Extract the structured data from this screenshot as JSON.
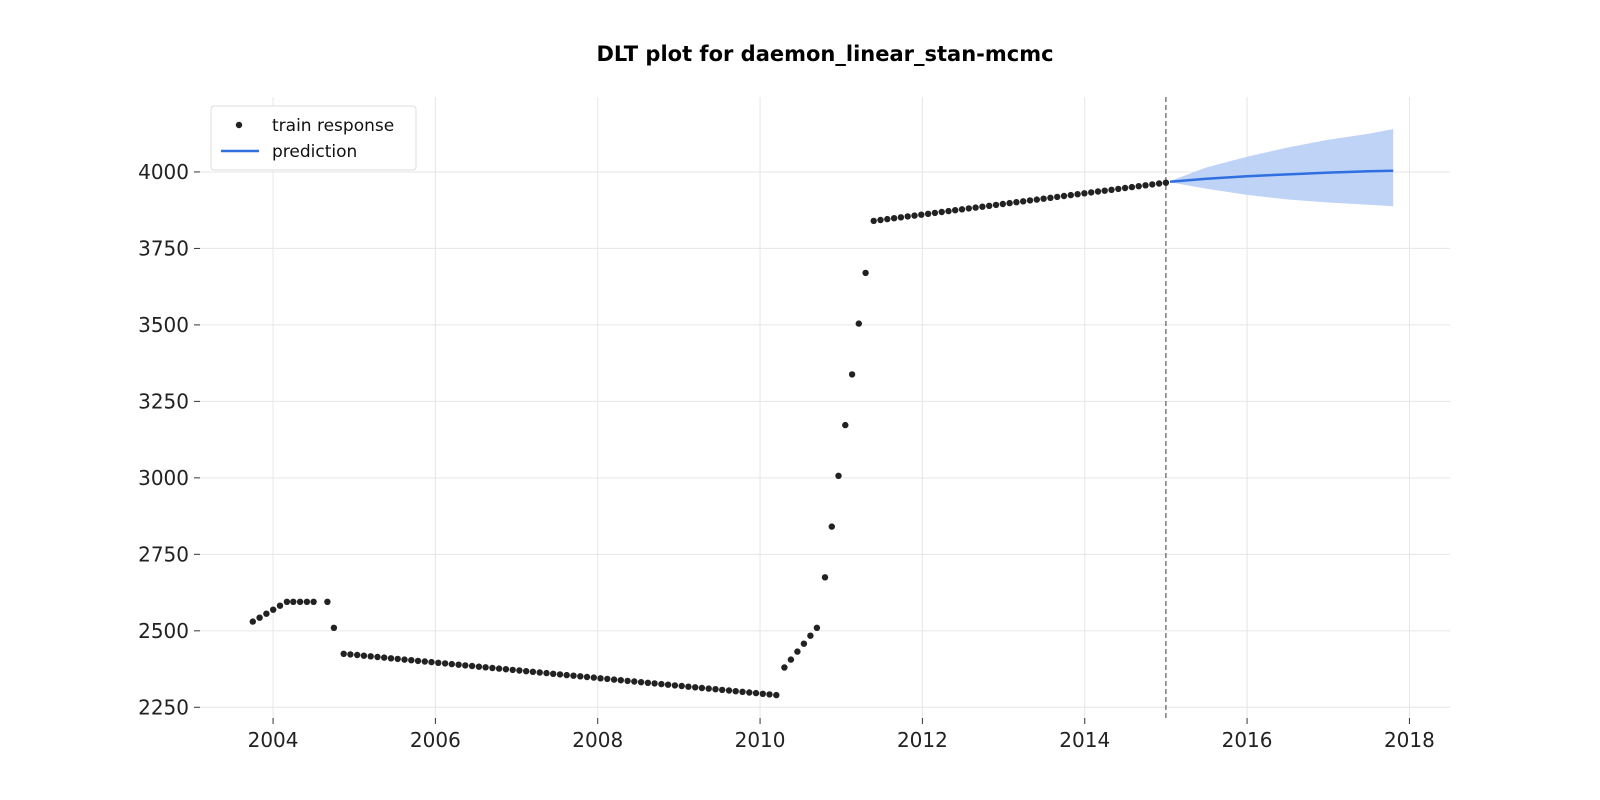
{
  "chart_data": {
    "type": "scatter",
    "title": "DLT plot for daemon_linear_stan-mcmc",
    "xlabel": "",
    "ylabel": "",
    "xlim": [
      2003.1,
      2018.5
    ],
    "ylim": [
      2215,
      4245
    ],
    "x_ticks": [
      2004,
      2006,
      2008,
      2010,
      2012,
      2014,
      2016,
      2018
    ],
    "x_tick_labels": [
      "2004",
      "2006",
      "2008",
      "2010",
      "2012",
      "2014",
      "2016",
      "2018"
    ],
    "y_ticks": [
      2250,
      2500,
      2750,
      3000,
      3250,
      3500,
      3750,
      4000
    ],
    "y_tick_labels": [
      "2250",
      "2500",
      "2750",
      "3000",
      "3250",
      "3500",
      "3750",
      "4000"
    ],
    "grid": true,
    "legend_position": "top-left",
    "vertical_line_x": 2015.0,
    "colors": {
      "points": "#222222",
      "prediction": "#2f6fe0",
      "band": "#bcd1f7",
      "vline": "#666666",
      "grid": "#e6e6e6"
    },
    "series": [
      {
        "name": "train response",
        "type": "scatter",
        "segments": [
          {
            "from": [
              2003.75,
              2530
            ],
            "to": [
              2004.17,
              2595
            ],
            "count": 6
          },
          {
            "from": [
              2004.25,
              2595
            ],
            "to": [
              2004.5,
              2595
            ],
            "count": 4
          },
          {
            "from": [
              2004.67,
              2595
            ],
            "to": [
              2004.67,
              2595
            ],
            "count": 1
          },
          {
            "from": [
              2004.75,
              2510
            ],
            "to": [
              2004.75,
              2510
            ],
            "count": 1
          },
          {
            "from": [
              2004.87,
              2425
            ],
            "to": [
              2010.2,
              2290
            ],
            "count": 65
          },
          {
            "from": [
              2010.3,
              2380
            ],
            "to": [
              2010.7,
              2510
            ],
            "count": 6
          },
          {
            "from": [
              2010.8,
              2675
            ],
            "to": [
              2011.3,
              3670
            ],
            "count": 7
          },
          {
            "from": [
              2011.4,
              3840
            ],
            "to": [
              2015.0,
              3965
            ],
            "count": 44
          }
        ]
      },
      {
        "name": "prediction",
        "type": "line",
        "x": [
          2015.05,
          2015.5,
          2016.0,
          2016.5,
          2017.0,
          2017.5,
          2017.8
        ],
        "y": [
          3968,
          3978,
          3986,
          3992,
          3998,
          4002,
          4004
        ],
        "upper": [
          3970,
          4015,
          4050,
          4080,
          4105,
          4125,
          4140
        ],
        "lower": [
          3966,
          3945,
          3925,
          3910,
          3900,
          3893,
          3888
        ]
      }
    ]
  }
}
